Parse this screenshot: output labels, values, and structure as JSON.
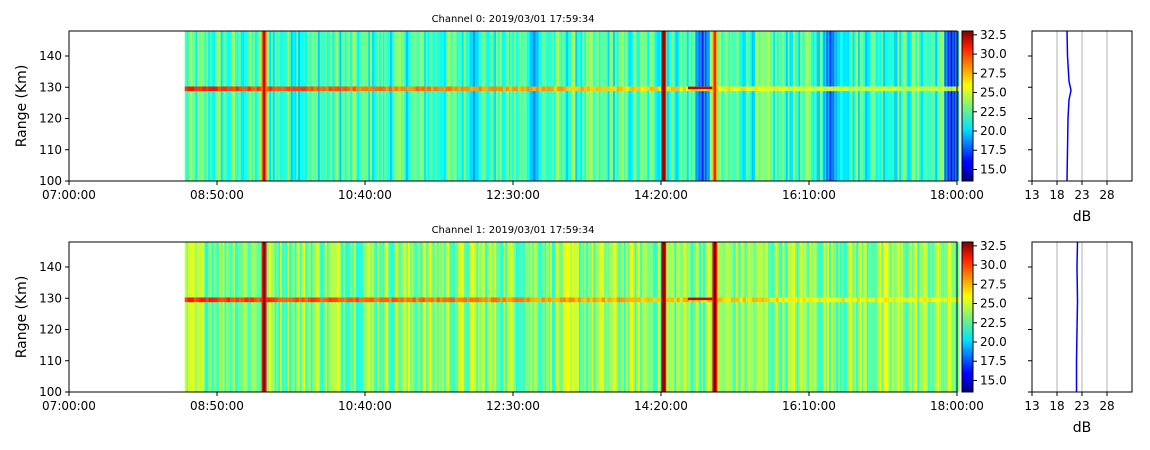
{
  "chart_data": [
    {
      "type": "heatmap",
      "title": "Channel 0: 2019/03/01 17:59:34",
      "xlabel": "",
      "ylabel": "Range (Km)",
      "x_range": [
        "07:00:00",
        "18:00:00"
      ],
      "x_ticks": [
        "07:00:00",
        "08:50:00",
        "10:40:00",
        "12:30:00",
        "14:20:00",
        "16:10:00",
        "18:00:00"
      ],
      "ylim": [
        100,
        148
      ],
      "y_ticks": [
        100,
        110,
        120,
        130,
        140
      ],
      "data_start": "08:26:00",
      "data_end": "18:00:00",
      "background_level": 22.0,
      "band": {
        "center_km": 129.5,
        "width_km": 1.5,
        "peak_level": 30.0
      },
      "bright_times": [
        {
          "time": "09:25:00",
          "level": 31.5
        },
        {
          "time": "14:22:00",
          "level": 33.0
        },
        {
          "time": "15:00:00",
          "level": 30.0
        }
      ],
      "dark_times": [
        {
          "time": "12:00:00",
          "level": 19.0
        },
        {
          "time": "12:45:00",
          "level": 18.5
        },
        {
          "time": "14:50:00",
          "level": 16.5
        },
        {
          "time": "16:25:00",
          "level": 17.0
        },
        {
          "time": "17:55:00",
          "level": 15.5
        }
      ],
      "colorbar": {
        "range": [
          13.5,
          33.0
        ],
        "ticks": [
          "32.5",
          "30.0",
          "27.5",
          "25.0",
          "22.5",
          "20.0",
          "17.5",
          "15.0"
        ],
        "colormap": "jet"
      },
      "profile": {
        "xlabel": "dB",
        "x_ticks": [
          "13",
          "18",
          "23",
          "28"
        ],
        "xlim": [
          13,
          33
        ],
        "ylim": [
          100,
          148
        ],
        "line_color": "#0000ff",
        "values": [
          {
            "range_km": 100,
            "db": 20.0
          },
          {
            "range_km": 110,
            "db": 20.1
          },
          {
            "range_km": 120,
            "db": 20.2
          },
          {
            "range_km": 126,
            "db": 20.4
          },
          {
            "range_km": 129,
            "db": 20.8
          },
          {
            "range_km": 132,
            "db": 20.4
          },
          {
            "range_km": 140,
            "db": 20.1
          },
          {
            "range_km": 148,
            "db": 20.0
          }
        ]
      }
    },
    {
      "type": "heatmap",
      "title": "Channel 1: 2019/03/01 17:59:34",
      "xlabel": "",
      "ylabel": "Range (Km)",
      "x_range": [
        "07:00:00",
        "18:00:00"
      ],
      "x_ticks": [
        "07:00:00",
        "08:50:00",
        "10:40:00",
        "12:30:00",
        "14:20:00",
        "16:10:00",
        "18:00:00"
      ],
      "ylim": [
        100,
        148
      ],
      "y_ticks": [
        100,
        110,
        120,
        130,
        140
      ],
      "data_start": "08:26:00",
      "data_end": "18:00:00",
      "background_level": 23.5,
      "band": {
        "center_km": 129.5,
        "width_km": 1.5,
        "peak_level": 30.0
      },
      "bright_times": [
        {
          "time": "09:25:00",
          "level": 33.0
        },
        {
          "time": "14:22:00",
          "level": 33.5
        },
        {
          "time": "15:00:00",
          "level": 33.0
        }
      ],
      "dark_times": [],
      "colorbar": {
        "range": [
          13.5,
          33.0
        ],
        "ticks": [
          "32.5",
          "30.0",
          "27.5",
          "25.0",
          "22.5",
          "20.0",
          "17.5",
          "15.0"
        ],
        "colormap": "jet"
      },
      "profile": {
        "xlabel": "dB",
        "x_ticks": [
          "13",
          "18",
          "23",
          "28"
        ],
        "xlim": [
          13,
          33
        ],
        "ylim": [
          100,
          148
        ],
        "line_color": "#0000ff",
        "values": [
          {
            "range_km": 100,
            "db": 21.9
          },
          {
            "range_km": 110,
            "db": 21.9
          },
          {
            "range_km": 120,
            "db": 22.0
          },
          {
            "range_km": 129,
            "db": 22.1
          },
          {
            "range_km": 140,
            "db": 22.0
          },
          {
            "range_km": 148,
            "db": 22.1
          }
        ]
      }
    }
  ]
}
